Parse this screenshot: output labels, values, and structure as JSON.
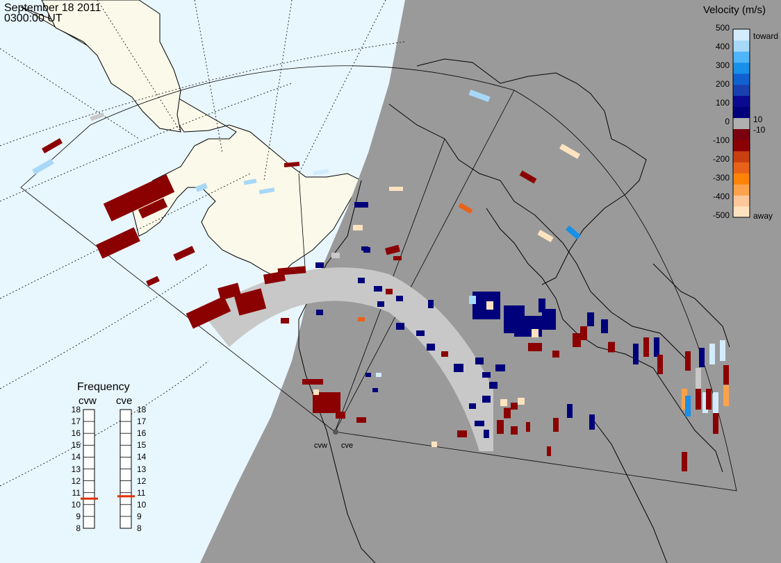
{
  "header": {
    "date": "September  18 2011",
    "time": "0300:00 UT"
  },
  "colorbar": {
    "title": "Velocity (m/s)",
    "ticks": [
      "500",
      "400",
      "300",
      "200",
      "100",
      "0",
      "-100",
      "-200",
      "-300",
      "-400",
      "-500"
    ],
    "side_labels": {
      "toward": "toward",
      "pos10": "10",
      "neg10": "-10",
      "away": "away"
    },
    "colors": [
      "#ffe3c0",
      "#fdc79a",
      "#fda24c",
      "#fd8408",
      "#e8621a",
      "#c84010",
      "#8b0000",
      "#7a0010",
      "#b0b0b0",
      "#00007a",
      "#0a0a90",
      "#1a40b0",
      "#1060d0",
      "#1890e8",
      "#50b4f8",
      "#a8d8f8",
      "#d2ecfc"
    ]
  },
  "frequency": {
    "title": "Frequency",
    "radars": [
      "cvw",
      "cve"
    ],
    "scale": [
      "18",
      "17",
      "16",
      "15",
      "14",
      "13",
      "12",
      "11",
      "10",
      "9",
      "8"
    ],
    "values_mhz": [
      10.5,
      10.7
    ]
  },
  "radar_sites": [
    "cvw",
    "cve"
  ],
  "colors": {
    "ocean": "#e8f6fd",
    "land_sunlit": "#fbf9ea",
    "night": "#9a9a9a",
    "low_velocity": "#c8c8c8"
  }
}
